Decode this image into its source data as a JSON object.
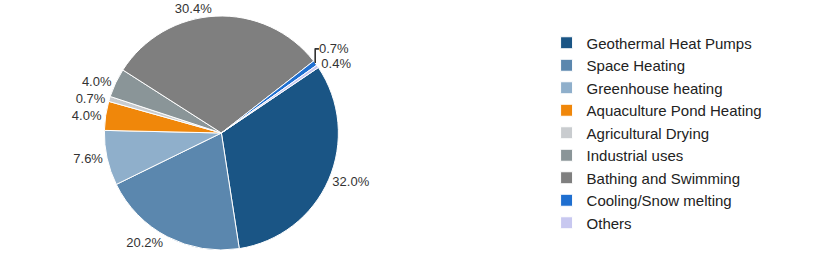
{
  "chart_data": {
    "type": "pie",
    "categories": [
      "Geothermal Heat Pumps",
      "Space Heating",
      "Greenhouse heating",
      "Aquaculture Pond Heating",
      "Agricultural Drying",
      "Industrial uses",
      "Bathing and Swimming",
      "Cooling/Snow melting",
      "Others"
    ],
    "values": [
      32.0,
      20.2,
      7.6,
      4.0,
      0.7,
      4.0,
      30.4,
      0.7,
      0.4
    ],
    "value_labels": [
      "32.0%",
      "20.2%",
      "7.6%",
      "4.0%",
      "0.7%",
      "4.0%",
      "30.4%",
      "0.7%",
      "0.4%"
    ],
    "colors": [
      "#1a5585",
      "#5b87ae",
      "#8fafcb",
      "#f0870a",
      "#c9cccf",
      "#8a9598",
      "#7f7f7f",
      "#1f6fd0",
      "#c8c8f0"
    ],
    "data_labels": true,
    "legend": "right"
  }
}
